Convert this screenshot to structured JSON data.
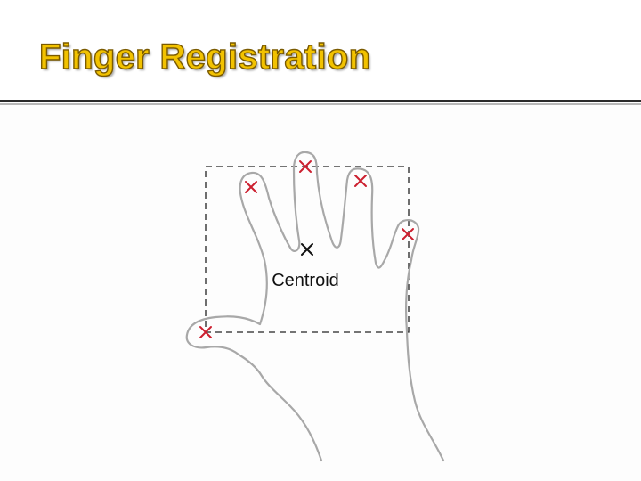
{
  "slide": {
    "title": "Finger Registration",
    "title_color": "#f2c200",
    "centroid_label": "Centroid"
  },
  "diagram": {
    "hand_outline_color": "#a8a8a8",
    "fingertip_marker_color": "#cc1f2f",
    "centroid_marker_color": "#111111",
    "bounding_box_style": "dashed"
  }
}
